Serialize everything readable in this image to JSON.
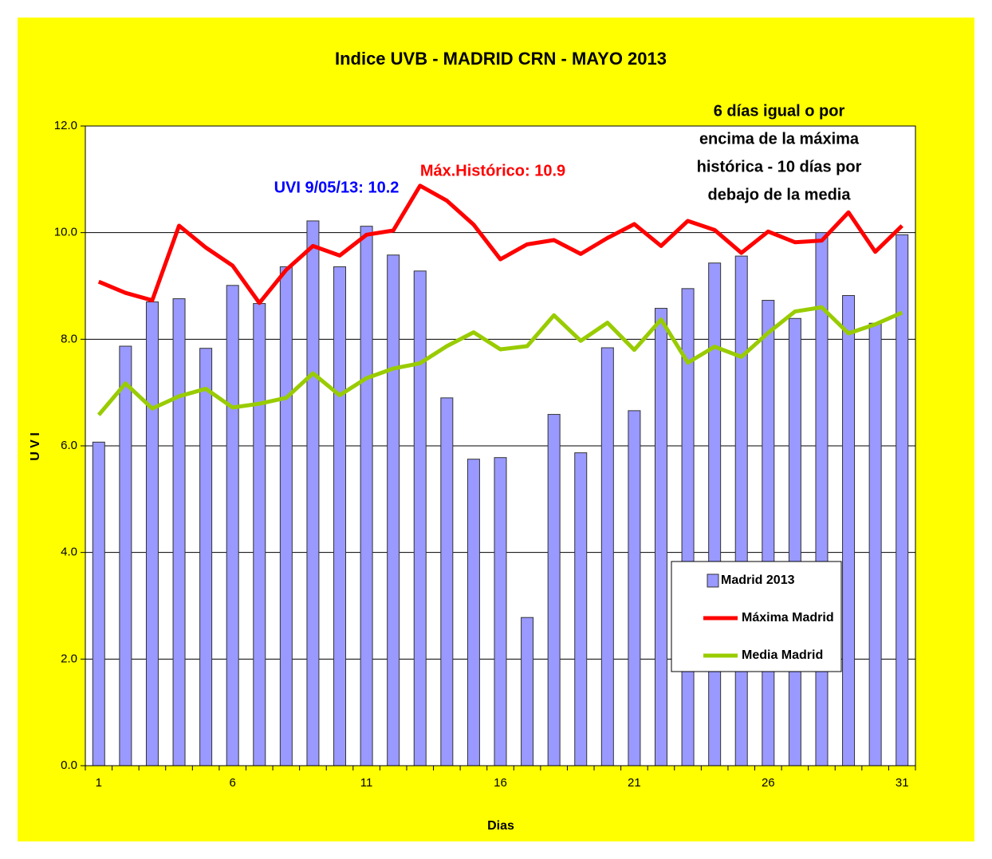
{
  "chart_data": {
    "type": "bar_line",
    "title": "Indice UVB -  MADRID CRN -  MAYO  2013",
    "x_label": "Dias",
    "y_label": "U V I",
    "categories": [
      "1",
      null,
      null,
      null,
      null,
      "6",
      null,
      null,
      null,
      null,
      "11",
      null,
      null,
      null,
      null,
      "16",
      null,
      null,
      null,
      null,
      "21",
      null,
      null,
      null,
      null,
      "26",
      null,
      null,
      null,
      null,
      "31"
    ],
    "series": [
      {
        "name": "Madrid 2013",
        "kind": "bar",
        "color": "#9999ff",
        "values": [
          6.07,
          7.87,
          8.7,
          8.76,
          7.83,
          9.01,
          8.67,
          9.36,
          10.22,
          9.36,
          10.12,
          9.58,
          9.28,
          6.9,
          5.75,
          5.78,
          2.78,
          6.59,
          5.87,
          7.84,
          6.66,
          8.58,
          8.95,
          9.43,
          9.56,
          8.73,
          8.39,
          10.0,
          8.82,
          8.3,
          9.96
        ]
      },
      {
        "name": "Máxima Madrid",
        "kind": "line",
        "color": "#ff0000",
        "values": [
          9.08,
          8.87,
          8.73,
          10.13,
          9.72,
          9.38,
          8.68,
          9.3,
          9.75,
          9.57,
          9.96,
          10.04,
          10.88,
          10.6,
          10.15,
          9.5,
          9.78,
          9.86,
          9.6,
          9.9,
          10.16,
          9.75,
          10.22,
          10.05,
          9.62,
          10.02,
          9.82,
          9.85,
          10.38,
          9.64,
          10.13
        ]
      },
      {
        "name": "Media Madrid",
        "kind": "line",
        "color": "#99cc00",
        "values": [
          6.58,
          7.17,
          6.7,
          6.93,
          7.07,
          6.72,
          6.79,
          6.9,
          7.36,
          6.95,
          7.27,
          7.45,
          7.55,
          7.87,
          8.13,
          7.81,
          7.87,
          8.45,
          7.97,
          8.31,
          7.8,
          8.37,
          7.56,
          7.86,
          7.67,
          8.12,
          8.52,
          8.6,
          8.11,
          8.28,
          8.5
        ]
      }
    ],
    "ylim": [
      0,
      12
    ],
    "yticks": [
      {
        "value": 0,
        "label": "0.0"
      },
      {
        "value": 2,
        "label": "2.0"
      },
      {
        "value": 4,
        "label": "4.0"
      },
      {
        "value": 6,
        "label": "6.0"
      },
      {
        "value": 8,
        "label": "8.0"
      },
      {
        "value": 10,
        "label": "10.0"
      },
      {
        "value": 12,
        "label": "12.0"
      }
    ],
    "grid": true,
    "legend_position": "lower right",
    "annotations": [
      {
        "lines": [
          "UVI  9/05/13: 10.2"
        ],
        "color": "#0000ff"
      },
      {
        "lines": [
          "Máx.Histórico: 10.9"
        ],
        "color": "#ff0000"
      },
      {
        "lines": [
          "6 días igual o por",
          "encima de la máxima",
          "histórica - 10 días por",
          "debajo de la media"
        ],
        "color": "#000000"
      }
    ]
  }
}
